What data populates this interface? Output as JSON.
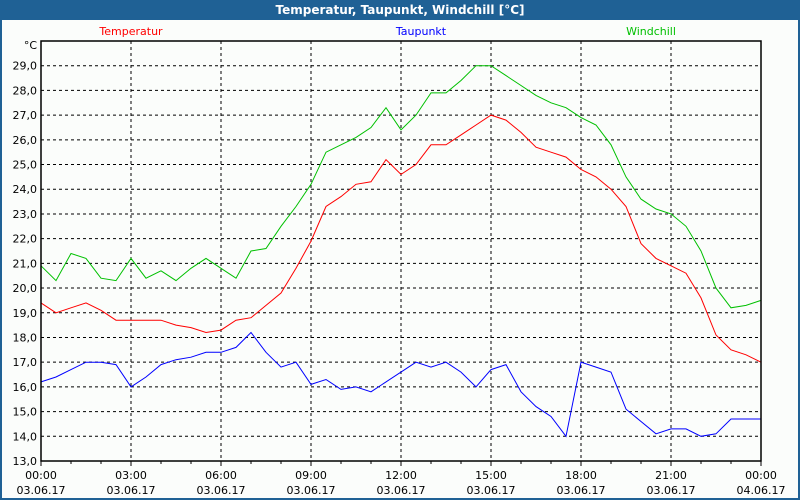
{
  "window_title": "Temperatur, Taupunkt, Windchill [°C]",
  "chart_data": {
    "type": "line",
    "title": "Temperatur, Taupunkt, Windchill [°C]",
    "ylabel": "°C",
    "ylim": [
      13,
      30
    ],
    "xlim_hours": [
      0,
      24
    ],
    "grid": true,
    "y_ticks": [
      "13,0",
      "14,0",
      "15,0",
      "16,0",
      "17,0",
      "18,0",
      "19,0",
      "20,0",
      "21,0",
      "22,0",
      "23,0",
      "24,0",
      "25,0",
      "26,0",
      "27,0",
      "28,0",
      "29,0"
    ],
    "x_ticks": [
      {
        "time": "00:00",
        "date": "03.06.17"
      },
      {
        "time": "03:00",
        "date": "03.06.17"
      },
      {
        "time": "06:00",
        "date": "03.06.17"
      },
      {
        "time": "09:00",
        "date": "03.06.17"
      },
      {
        "time": "12:00",
        "date": "03.06.17"
      },
      {
        "time": "15:00",
        "date": "03.06.17"
      },
      {
        "time": "18:00",
        "date": "03.06.17"
      },
      {
        "time": "21:00",
        "date": "03.06.17"
      },
      {
        "time": "00:00",
        "date": "04.06.17"
      }
    ],
    "x_step_hours": 0.5,
    "series": [
      {
        "name": "Temperatur",
        "color": "#ff0000",
        "legend": "top-left",
        "values": [
          19.4,
          19.0,
          19.2,
          19.4,
          19.1,
          18.7,
          18.7,
          18.7,
          18.7,
          18.5,
          18.4,
          18.2,
          18.3,
          18.7,
          18.8,
          19.3,
          19.8,
          20.8,
          21.9,
          23.3,
          23.7,
          24.2,
          24.3,
          25.2,
          24.6,
          25.0,
          25.8,
          25.8,
          26.2,
          26.6,
          27.0,
          26.8,
          26.3,
          25.7,
          25.5,
          25.3,
          24.8,
          24.5,
          24.0,
          23.3,
          21.8,
          21.2,
          20.9,
          20.6,
          19.6,
          18.1,
          17.5,
          17.3,
          17.0
        ]
      },
      {
        "name": "Taupunkt",
        "color": "#0000ff",
        "legend": "top-center",
        "values": [
          16.2,
          16.4,
          16.7,
          17.0,
          17.0,
          16.9,
          16.0,
          16.4,
          16.9,
          17.1,
          17.2,
          17.4,
          17.4,
          17.6,
          18.2,
          17.4,
          16.8,
          17.0,
          16.1,
          16.3,
          15.9,
          16.0,
          15.8,
          16.2,
          16.6,
          17.0,
          16.8,
          17.0,
          16.6,
          16.0,
          16.7,
          16.9,
          15.8,
          15.2,
          14.8,
          14.0,
          17.0,
          16.8,
          16.6,
          15.1,
          14.6,
          14.1,
          14.3,
          14.3,
          14.0,
          14.1,
          14.7,
          14.7,
          14.7
        ]
      },
      {
        "name": "Windchill",
        "color": "#00c000",
        "legend": "top-right",
        "values": [
          20.9,
          20.3,
          21.4,
          21.2,
          20.4,
          20.3,
          21.2,
          20.4,
          20.7,
          20.3,
          20.8,
          21.2,
          20.8,
          20.4,
          21.5,
          21.6,
          22.5,
          23.3,
          24.2,
          25.5,
          25.8,
          26.1,
          26.5,
          27.3,
          26.4,
          27.0,
          27.9,
          27.9,
          28.4,
          29.0,
          29.0,
          28.6,
          28.2,
          27.8,
          27.5,
          27.3,
          26.9,
          26.6,
          25.8,
          24.5,
          23.6,
          23.2,
          23.0,
          22.5,
          21.5,
          20.0,
          19.2,
          19.3,
          19.5
        ]
      }
    ]
  }
}
